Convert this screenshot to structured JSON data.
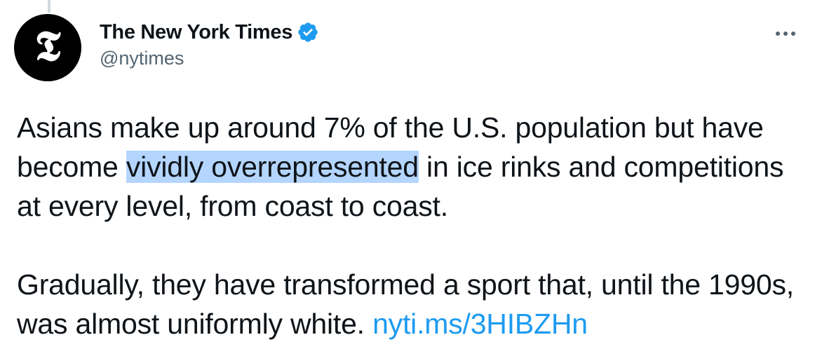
{
  "author": {
    "display_name": "The New York Times",
    "handle": "@nytimes",
    "avatar_glyph": "𝕿",
    "verified": true,
    "verified_color": "#1d9bf0"
  },
  "tweet": {
    "paragraph1": {
      "before": "Asians make up around 7% of the U.S. population but have become ",
      "highlighted": "vividly overrepresented",
      "after": " in ice rinks and competitions at every level, from coast to coast."
    },
    "paragraph2": {
      "text": "Gradually, they have transformed a sport that, until the 1990s, was almost uniformly white. ",
      "link": "nyti.ms/3HIBZHn"
    }
  },
  "icons": {
    "more": "more-options-icon",
    "verified": "verified-badge-icon"
  },
  "colors": {
    "text_primary": "#0f1419",
    "text_secondary": "#536471",
    "link": "#1d9bf0",
    "selection": "#b4d5fe"
  }
}
